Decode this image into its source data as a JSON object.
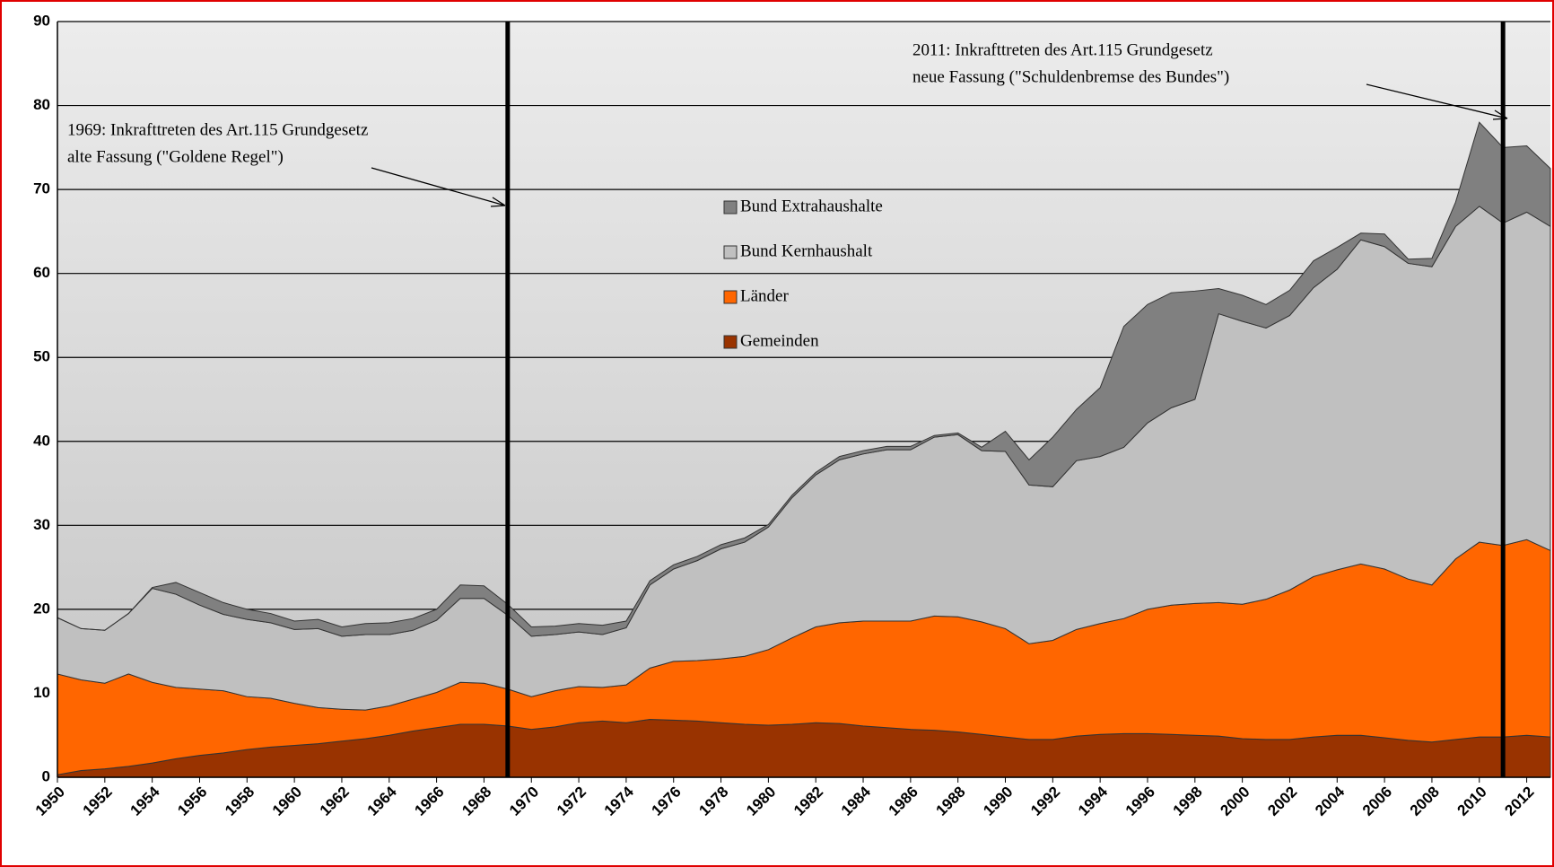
{
  "chart_data": {
    "type": "stacked_area",
    "x": [
      1950,
      1951,
      1952,
      1953,
      1954,
      1955,
      1956,
      1957,
      1958,
      1959,
      1960,
      1961,
      1962,
      1963,
      1964,
      1965,
      1966,
      1967,
      1968,
      1969,
      1970,
      1971,
      1972,
      1973,
      1974,
      1975,
      1976,
      1977,
      1978,
      1979,
      1980,
      1981,
      1982,
      1983,
      1984,
      1985,
      1986,
      1987,
      1988,
      1989,
      1990,
      1991,
      1992,
      1993,
      1994,
      1995,
      1996,
      1997,
      1998,
      1999,
      2000,
      2001,
      2002,
      2003,
      2004,
      2005,
      2006,
      2007,
      2008,
      2009,
      2010,
      2011,
      2012,
      2013
    ],
    "series": [
      {
        "name": "Gemeinden",
        "color": "#993300",
        "values": [
          0.3,
          0.8,
          1.0,
          1.3,
          1.7,
          2.2,
          2.6,
          2.9,
          3.3,
          3.6,
          3.8,
          4.0,
          4.3,
          4.6,
          5.0,
          5.5,
          5.9,
          6.3,
          6.3,
          6.1,
          5.7,
          6.0,
          6.5,
          6.7,
          6.5,
          6.9,
          6.8,
          6.7,
          6.5,
          6.3,
          6.2,
          6.3,
          6.5,
          6.4,
          6.1,
          5.9,
          5.7,
          5.6,
          5.4,
          5.1,
          4.8,
          4.5,
          4.5,
          4.9,
          5.1,
          5.2,
          5.2,
          5.1,
          5.0,
          4.9,
          4.6,
          4.5,
          4.5,
          4.8,
          5.0,
          5.0,
          4.7,
          4.4,
          4.2,
          4.5,
          4.8,
          4.8,
          5.0,
          4.8
        ]
      },
      {
        "name": "Länder",
        "color": "#ff6600",
        "values": [
          12.0,
          10.8,
          10.2,
          11.0,
          9.6,
          8.5,
          7.9,
          7.4,
          6.3,
          5.8,
          5.0,
          4.3,
          3.8,
          3.4,
          3.5,
          3.8,
          4.2,
          5.0,
          4.9,
          4.4,
          3.9,
          4.3,
          4.3,
          4.0,
          4.5,
          6.1,
          7.0,
          7.2,
          7.6,
          8.1,
          9.0,
          10.3,
          11.4,
          12.0,
          12.5,
          12.7,
          12.9,
          13.6,
          13.7,
          13.4,
          12.9,
          11.4,
          11.8,
          12.7,
          13.2,
          13.7,
          14.8,
          15.4,
          15.7,
          15.9,
          16.0,
          16.7,
          17.8,
          19.1,
          19.7,
          20.4,
          20.1,
          19.2,
          18.7,
          21.5,
          23.2,
          22.8,
          23.3,
          22.2
        ]
      },
      {
        "name": "Bund Kernhaushalt",
        "color": "#c0c0c0",
        "values": [
          6.7,
          6.1,
          6.3,
          7.2,
          11.2,
          11.1,
          10.0,
          9.1,
          9.2,
          9.0,
          8.8,
          9.4,
          8.7,
          9.0,
          8.5,
          8.2,
          8.6,
          10.0,
          10.1,
          8.8,
          7.2,
          6.7,
          6.5,
          6.3,
          6.8,
          9.9,
          11.0,
          11.9,
          13.1,
          13.6,
          14.6,
          16.7,
          18.1,
          19.4,
          19.9,
          20.4,
          20.4,
          21.3,
          21.7,
          20.4,
          21.1,
          18.9,
          18.3,
          20.1,
          19.9,
          20.4,
          22.2,
          23.5,
          24.3,
          34.4,
          33.7,
          32.3,
          32.7,
          34.4,
          35.8,
          38.6,
          38.4,
          37.6,
          37.9,
          39.6,
          40.0,
          38.4,
          39.0,
          38.6
        ]
      },
      {
        "name": "Bund Extrahaushalte",
        "color": "#808080",
        "values": [
          0,
          0,
          0,
          0,
          0.1,
          1.4,
          1.5,
          1.4,
          1.2,
          1.1,
          1.0,
          1.1,
          1.1,
          1.3,
          1.4,
          1.4,
          1.3,
          1.6,
          1.5,
          1.3,
          1.1,
          1.0,
          1.0,
          1.1,
          0.8,
          0.5,
          0.5,
          0.5,
          0.5,
          0.5,
          0.3,
          0.3,
          0.3,
          0.4,
          0.4,
          0.4,
          0.4,
          0.2,
          0.2,
          0.4,
          2.4,
          3.0,
          5.9,
          6.1,
          8.2,
          14.4,
          14.1,
          13.7,
          12.9,
          3.0,
          3.1,
          2.8,
          3.0,
          3.2,
          2.6,
          0.8,
          1.5,
          0.5,
          1.0,
          2.9,
          10.0,
          9.0,
          7.9,
          6.9
        ]
      }
    ],
    "xlim": [
      1950,
      2013
    ],
    "xticks": [
      1950,
      1952,
      1954,
      1956,
      1958,
      1960,
      1962,
      1964,
      1966,
      1968,
      1970,
      1972,
      1974,
      1976,
      1978,
      1980,
      1982,
      1984,
      1986,
      1988,
      1990,
      1992,
      1994,
      1996,
      1998,
      2000,
      2002,
      2004,
      2006,
      2008,
      2010,
      2012
    ],
    "ylim": [
      0,
      90
    ],
    "yticks": [
      0,
      10,
      20,
      30,
      40,
      50,
      60,
      70,
      80,
      90
    ],
    "grid": true,
    "annotations": [
      {
        "text": [
          "1969: Inkrafttreten des Art.115 Grundgesetz",
          "alte Fassung (\"Goldene Regel\")"
        ],
        "x": 1969
      },
      {
        "text": [
          "2011: Inkrafttreten des Art.115 Grundgesetz",
          "neue Fassung (\"Schuldenbremse des Bundes\")"
        ],
        "x": 2011
      }
    ]
  }
}
